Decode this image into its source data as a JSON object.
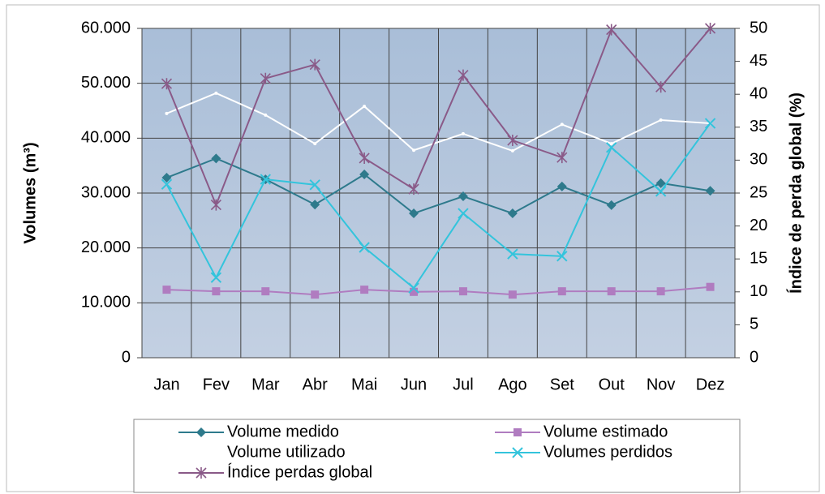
{
  "chart_data": {
    "type": "line",
    "y_label": "Volumes (m³)",
    "y2_label": "Índice de perda global (%)",
    "categories": [
      "Jan",
      "Fev",
      "Mar",
      "Abr",
      "Mai",
      "Jun",
      "Jul",
      "Ago",
      "Set",
      "Out",
      "Nov",
      "Dez"
    ],
    "series": [
      {
        "name": "Volume medido",
        "color": "#2e7a8c",
        "marker": "diamond",
        "values": [
          32800,
          36300,
          32500,
          27900,
          33400,
          26300,
          29400,
          26300,
          31200,
          27800,
          31800,
          30400
        ]
      },
      {
        "name": "Volume estimado",
        "color": "#b07cc0",
        "marker": "square",
        "values": [
          12400,
          12100,
          12100,
          11500,
          12400,
          12000,
          12100,
          11500,
          12100,
          12100,
          12100,
          12900
        ]
      },
      {
        "name": "Volume utilizado",
        "color": "#ffffff",
        "marker": "none",
        "values": [
          44500,
          48200,
          44200,
          39000,
          45800,
          37800,
          40800,
          37700,
          42500,
          39000,
          43300,
          42700
        ]
      },
      {
        "name": "Volumes perdidos",
        "color": "#33c4dc",
        "marker": "x",
        "values": [
          31600,
          14600,
          32500,
          31500,
          20100,
          12700,
          26300,
          18900,
          18500,
          38300,
          30300,
          42700
        ]
      },
      {
        "name": "Índice perdas global",
        "color": "#8a5a88",
        "marker": "star",
        "axis": "y2",
        "values": [
          41.6,
          23.2,
          42.4,
          44.5,
          30.3,
          25.6,
          42.9,
          33.0,
          30.4,
          49.8,
          41.1,
          50
        ]
      }
    ],
    "ylim": [
      0,
      60000
    ],
    "yticks": [
      0,
      {
        "value": 10000,
        "label": "10.000"
      },
      {
        "value": 20000,
        "label": "20.000"
      },
      {
        "value": 30000,
        "label": "30.000"
      },
      {
        "value": 40000,
        "label": "40.000"
      },
      {
        "value": 50000,
        "label": "50.000"
      },
      {
        "value": 60000,
        "label": "60.000"
      }
    ],
    "y2lim": [
      0,
      50
    ],
    "y2ticks": [
      0,
      5,
      10,
      15,
      20,
      25,
      30,
      35,
      40,
      45,
      50
    ],
    "grid": true
  }
}
